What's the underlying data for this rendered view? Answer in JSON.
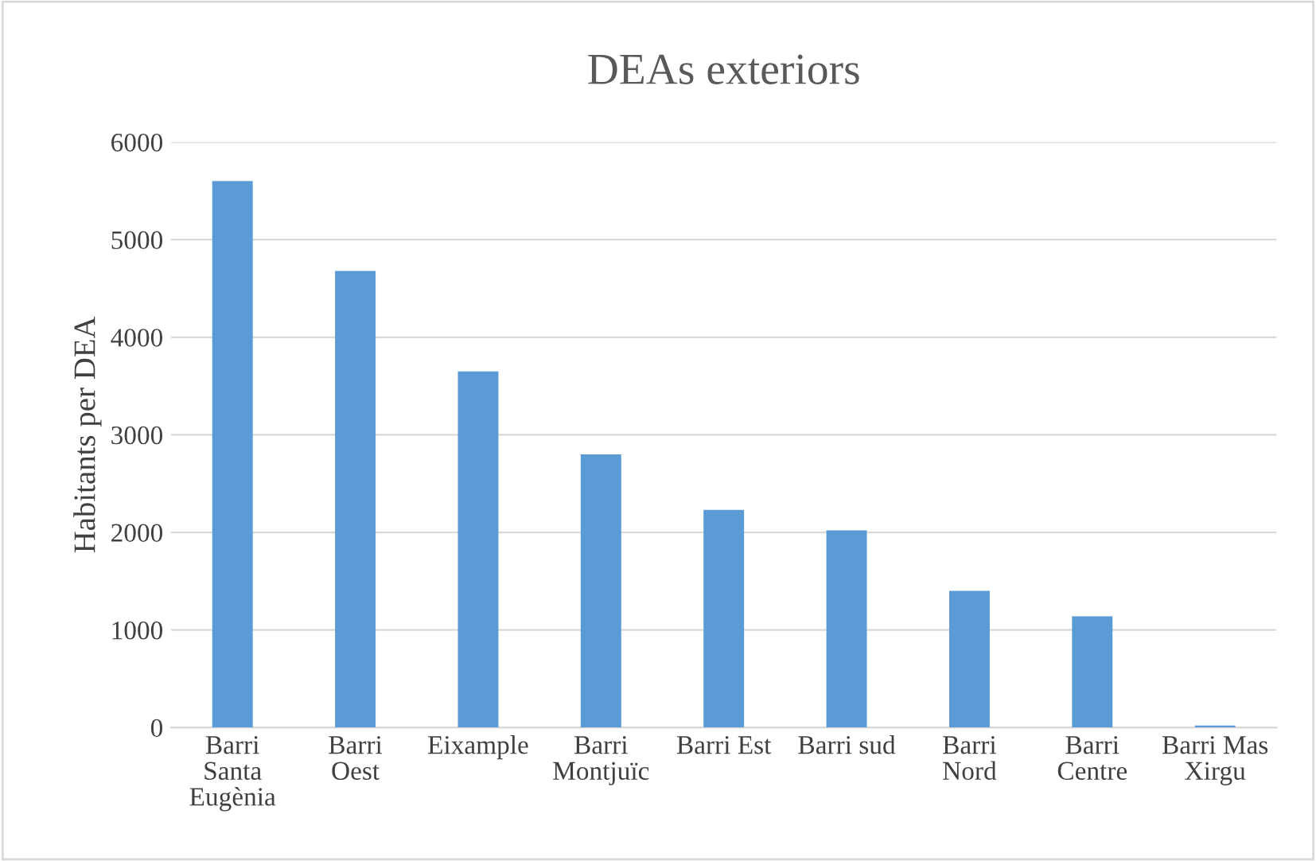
{
  "chart_data": {
    "type": "bar",
    "title": "DEAs exteriors",
    "ylabel": "Habitants per DEA",
    "categories": [
      "Barri\nSanta\nEugènia",
      "Barri\nOest",
      "Eixample",
      "Barri\nMontjuïc",
      "Barri Est",
      "Barri sud",
      "Barri\nNord",
      "Barri\nCentre",
      "Barri Mas\nXirgu"
    ],
    "values": [
      5600,
      4680,
      3650,
      2800,
      2230,
      2020,
      1400,
      1140,
      20
    ],
    "color": "#5b9bd5",
    "ylim": [
      0,
      6000
    ],
    "yticks": [
      0,
      1000,
      2000,
      3000,
      4000,
      5000,
      6000
    ],
    "grid": "y",
    "legend": false
  }
}
